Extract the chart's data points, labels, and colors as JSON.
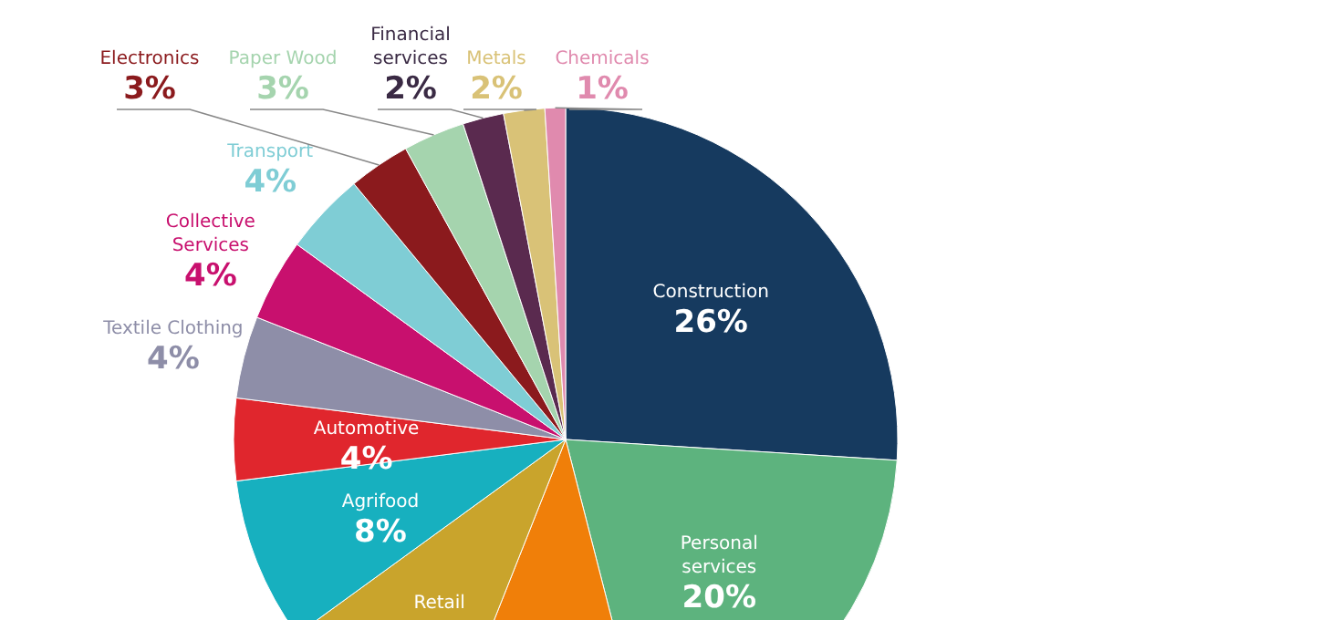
{
  "chart_data": {
    "type": "pie",
    "categories": [
      "Construction",
      "Personal services",
      null,
      "Retail",
      "Agrifood",
      "Automotive",
      "Textile Clothing",
      "Collective Services",
      "Transport",
      "Electronics",
      "Paper Wood",
      "Financial services",
      "Metals",
      "Chemicals"
    ],
    "values": [
      26,
      20,
      10,
      9,
      8,
      4,
      4,
      4,
      4,
      3,
      3,
      2,
      2,
      1
    ],
    "value_labels": [
      "26%",
      "20%",
      null,
      null,
      "8%",
      "4%",
      "4%",
      "4%",
      "4%",
      "3%",
      "3%",
      "2%",
      "2%",
      "1%"
    ],
    "colors": [
      "#163a5f",
      "#5db37e",
      "#f07f09",
      "#c9a42c",
      "#17b0bf",
      "#e0262d",
      "#8e8ea8",
      "#c8106e",
      "#7fcdd5",
      "#8b1a1d",
      "#a5d4ae",
      "#5a2a4f",
      "#d9c277",
      "#e08aae"
    ]
  }
}
